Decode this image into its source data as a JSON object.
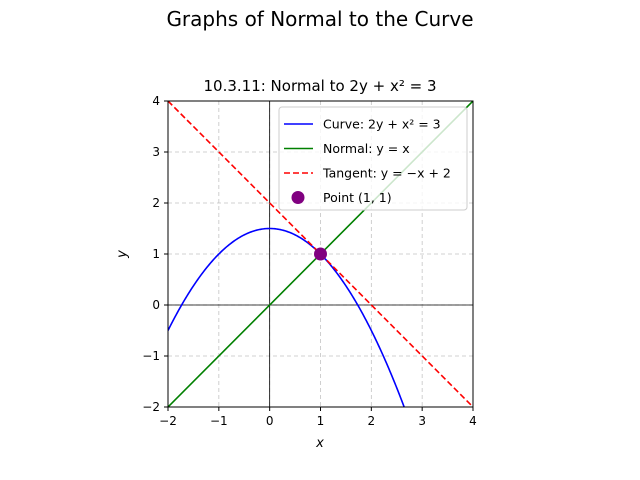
{
  "figure": {
    "suptitle": "Graphs of Normal to the Curve"
  },
  "chart_data": {
    "type": "line",
    "title": "10.3.11: Normal to 2y + x² = 3",
    "xlabel": "x",
    "ylabel": "y",
    "xlim": [
      -2,
      4
    ],
    "ylim": [
      -2,
      4
    ],
    "xticks": [
      -2,
      -1,
      0,
      1,
      2,
      3,
      4
    ],
    "yticks": [
      -2,
      -1,
      0,
      1,
      2,
      3,
      4
    ],
    "xtick_labels": [
      "−2",
      "−1",
      "0",
      "1",
      "2",
      "3",
      "4"
    ],
    "ytick_labels": [
      "−2",
      "−1",
      "0",
      "1",
      "2",
      "3",
      "4"
    ],
    "grid": true,
    "zero_lines": true,
    "legend_position": "top-right",
    "series": [
      {
        "name": "Curve: 2y + x² = 3",
        "kind": "line",
        "color": "#0000ff",
        "style": "solid",
        "x": [
          -2,
          -1.5,
          -1,
          -0.5,
          0,
          0.5,
          1,
          1.5,
          2,
          2.5,
          2.646
        ],
        "y": [
          -0.5,
          0.375,
          1,
          1.375,
          1.5,
          1.375,
          1,
          0.375,
          -0.5,
          -1.625,
          -2
        ]
      },
      {
        "name": "Normal: y = x",
        "kind": "line",
        "color": "#008000",
        "style": "solid",
        "x": [
          -2,
          4
        ],
        "y": [
          -2,
          4
        ]
      },
      {
        "name": "Tangent: y = −x + 2",
        "kind": "line",
        "color": "#ff0000",
        "style": "dashed",
        "x": [
          -2,
          4
        ],
        "y": [
          4,
          -2
        ]
      },
      {
        "name": "Point (1, 1)",
        "kind": "scatter",
        "color": "#800080",
        "x": [
          1
        ],
        "y": [
          1
        ]
      }
    ]
  }
}
